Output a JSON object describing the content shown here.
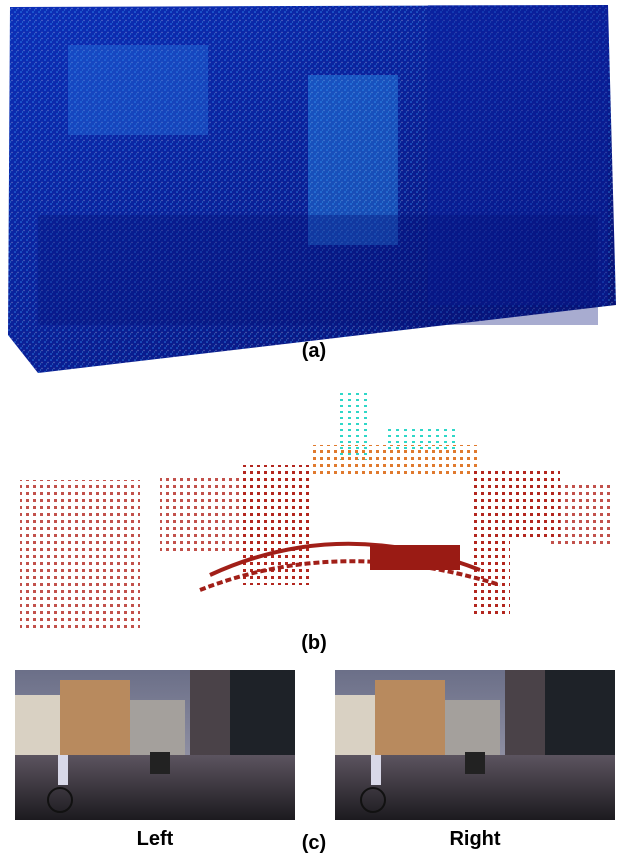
{
  "figure": {
    "panels": [
      {
        "label": "(a)",
        "description_icon": "volumetric-point-cloud-icon"
      },
      {
        "label": "(b)",
        "description_icon": "lidar-point-cloud-icon"
      },
      {
        "label": "(c)",
        "description_icon": "stereo-camera-images-icon"
      }
    ],
    "stereo": {
      "left_label": "Left",
      "right_label": "Right"
    }
  },
  "colors": {
    "volume_dark": "#071a8a",
    "volume_mid": "#1e4fd8",
    "volume_light": "#38b6ff",
    "lidar_near": "#b3261e",
    "lidar_mid": "#e07a2e",
    "lidar_far": "#2fd7c8"
  }
}
